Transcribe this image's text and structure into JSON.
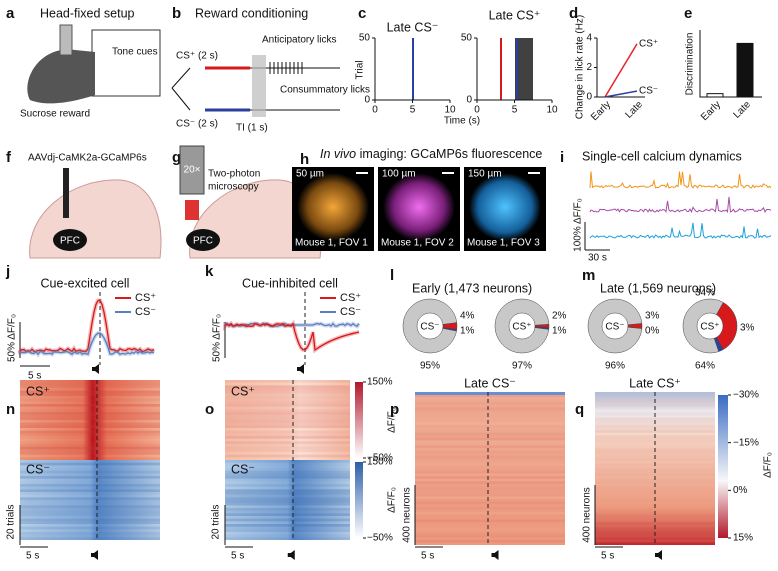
{
  "a": {
    "letter": "a",
    "title": "Head-fixed setup",
    "tone": "Tone cues",
    "reward": "Sucrose reward"
  },
  "b": {
    "letter": "b",
    "title": "Reward conditioning",
    "cs_plus": "CS⁺ (2 s)",
    "cs_minus": "CS⁻ (2 s)",
    "anticipatory": "Anticipatory licks",
    "consummatory": "Consummatory licks",
    "ti": "TI (1 s)"
  },
  "c": {
    "letter": "c",
    "y_label": "Trial",
    "x_label": "Time (s)",
    "plots": [
      {
        "title": "Late CS⁻",
        "xlim": [
          0,
          10
        ],
        "xticks": [
          0,
          5,
          10
        ],
        "ylim": [
          0,
          50
        ],
        "yticks": [
          0,
          50
        ]
      },
      {
        "title": "Late CS⁺",
        "xlim": [
          0,
          10
        ],
        "xticks": [
          0,
          5,
          10
        ],
        "ylim": [
          0,
          50
        ],
        "yticks": [
          0,
          50
        ]
      }
    ]
  },
  "d": {
    "letter": "d",
    "type": "line",
    "y_label": "Change in lick rate (Hz)",
    "categories": [
      "Early",
      "Late"
    ],
    "ylim": [
      0,
      4
    ],
    "yticks": [
      0,
      2,
      4
    ],
    "series": [
      {
        "name": "CS⁺",
        "color": "#e3242b",
        "values": [
          0,
          3.6
        ]
      },
      {
        "name": "CS⁻",
        "color": "#2b3f9e",
        "values": [
          0,
          0.4
        ]
      }
    ]
  },
  "e": {
    "letter": "e",
    "type": "bar",
    "y_label": "Discrimination",
    "categories": [
      "Early",
      "Late"
    ],
    "values": [
      0.02,
      0.32
    ],
    "colors": [
      "#ffffff",
      "#111111"
    ],
    "ylim": [
      0,
      0.4
    ]
  },
  "f": {
    "letter": "f",
    "virus": "AAVdj-CaMK2a-GCaMP6s",
    "region": "PFC"
  },
  "g": {
    "letter": "g",
    "magnification": "20×",
    "line1": "Two-photon",
    "line2": "microscopy",
    "region": "PFC"
  },
  "h": {
    "letter": "h",
    "title_italic": "In vivo",
    "title": "imaging: GCaMP6s fluorescence",
    "images": [
      {
        "scale": "50 µm",
        "caption": "Mouse 1, FOV 1"
      },
      {
        "scale": "100 µm",
        "caption": "Mouse 1, FOV 2"
      },
      {
        "scale": "150 µm",
        "caption": "Mouse 1, FOV 3"
      }
    ]
  },
  "i": {
    "letter": "i",
    "title": "Single-cell calcium dynamics",
    "scale_y": "100% ΔF/F₀",
    "scale_x": "30 s"
  },
  "j": {
    "letter": "j",
    "title": "Cue-excited cell",
    "legend": [
      "CS⁺",
      "CS⁻"
    ],
    "scale_y": "50% ΔF/F₀",
    "scale_x": "5 s"
  },
  "k": {
    "letter": "k",
    "title": "Cue-inhibited cell",
    "legend": [
      "CS⁺",
      "CS⁻"
    ],
    "scale_y": "50% ΔF/F₀"
  },
  "l": {
    "letter": "l",
    "title": "Early (1,473 neurons)",
    "pies": [
      {
        "center": "CS⁻",
        "values": [
          4,
          1,
          95
        ],
        "value_labels": [
          "4%",
          "1%",
          "95%"
        ]
      },
      {
        "center": "CS⁺",
        "values": [
          2,
          1,
          97
        ],
        "value_labels": [
          "2%",
          "1%",
          "97%"
        ]
      }
    ]
  },
  "m": {
    "letter": "m",
    "title": "Late (1,569 neurons)",
    "pies": [
      {
        "center": "CS⁻",
        "values": [
          3,
          0,
          96
        ],
        "value_labels": [
          "3%",
          "0%",
          "96%"
        ]
      },
      {
        "center": "CS⁺",
        "values": [
          34,
          3,
          64
        ],
        "value_labels": [
          "34%",
          "3%",
          "64%"
        ]
      }
    ]
  },
  "pie_colors": [
    "#d7191c",
    "#2b3f9e",
    "#c8c8c8"
  ],
  "n": {
    "letter": "n",
    "labels": [
      "CS⁺",
      "CS⁻"
    ],
    "scale_y": "20 trials",
    "scale_x": "5 s"
  },
  "o": {
    "letter": "o",
    "labels": [
      "CS⁺",
      "CS⁻"
    ],
    "scale_y": "20 trials",
    "scale_x": "5 s",
    "colorbars": [
      {
        "label": "ΔF/F₀",
        "lim": [
          -50,
          150
        ],
        "ticks": [
          {
            "value": 150,
            "label": "150%"
          },
          {
            "value": -50,
            "label": "−50%"
          }
        ]
      },
      {
        "label": "ΔF/F₀",
        "lim": [
          -50,
          150
        ],
        "ticks": [
          {
            "value": 150,
            "label": "150%"
          },
          {
            "value": -50,
            "label": "−50%"
          }
        ]
      }
    ]
  },
  "p": {
    "letter": "p",
    "title": "Late CS⁻",
    "scale_y": "400 neurons",
    "scale_x": "5 s"
  },
  "q": {
    "letter": "q",
    "title": "Late CS⁺",
    "scale_y": "400 neurons",
    "scale_x": "5 s",
    "colorbar": {
      "label": "ΔF/F₀",
      "lim": [
        -30,
        15
      ],
      "ticks": [
        {
          "value": -30,
          "label": "−30%"
        },
        {
          "value": -15,
          "label": "−15%"
        },
        {
          "value": 0,
          "label": "0%"
        },
        {
          "value": 15,
          "label": "15%"
        }
      ]
    }
  }
}
